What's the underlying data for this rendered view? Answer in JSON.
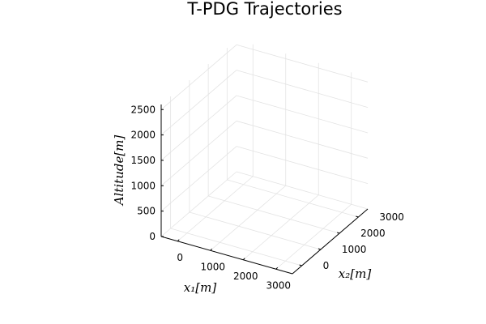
{
  "chart_data": {
    "type": "line",
    "title": "T-PDG Trajectories",
    "xlabel": "x₁[m]",
    "ylabel": "x₂[m]",
    "zlabel": "Altitude[m]",
    "xticks": [
      0,
      1000,
      2000,
      3000
    ],
    "yticks": [
      0,
      1000,
      2000,
      3000
    ],
    "zticks": [
      0,
      500,
      1000,
      1500,
      2000,
      2500
    ],
    "xlim": [
      -500,
      3500
    ],
    "ylim": [
      -500,
      3500
    ],
    "zlim": [
      0,
      2600
    ],
    "grid": true,
    "series": []
  },
  "colors": {
    "grid": "#e3e3e3",
    "axis": "#000000"
  }
}
